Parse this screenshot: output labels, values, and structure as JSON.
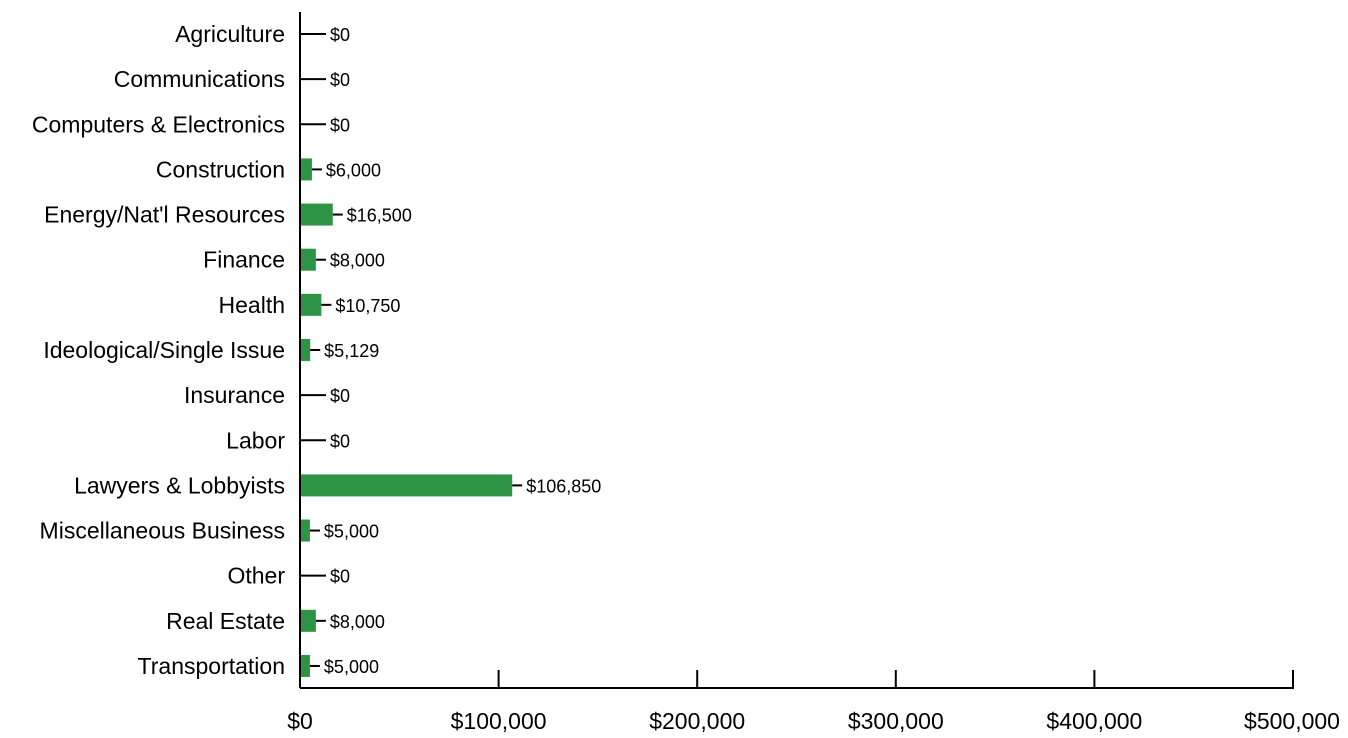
{
  "chart_data": {
    "type": "bar",
    "orientation": "horizontal",
    "title": "",
    "xlabel": "",
    "ylabel": "",
    "xlim": [
      0,
      500000
    ],
    "grid": false,
    "legend": "none",
    "bar_color": "#2e9445",
    "categories": [
      "Agriculture",
      "Communications",
      "Computers & Electronics",
      "Construction",
      "Energy/Nat'l Resources",
      "Finance",
      "Health",
      "Ideological/Single Issue",
      "Insurance",
      "Labor",
      "Lawyers & Lobbyists",
      "Miscellaneous Business",
      "Other",
      "Real Estate",
      "Transportation"
    ],
    "values": [
      0,
      0,
      0,
      6000,
      16500,
      8000,
      10750,
      5129,
      0,
      0,
      106850,
      5000,
      0,
      8000,
      5000
    ],
    "value_labels": [
      "$0",
      "$0",
      "$0",
      "$6,000",
      "$16,500",
      "$8,000",
      "$10,750",
      "$5,129",
      "$0",
      "$0",
      "$106,850",
      "$5,000",
      "$0",
      "$8,000",
      "$5,000"
    ],
    "x_ticks": [
      0,
      100000,
      200000,
      300000,
      400000,
      500000
    ],
    "x_tick_labels": [
      "$0",
      "$100,000",
      "$200,000",
      "$300,000",
      "$400,000",
      "$500,000"
    ]
  }
}
